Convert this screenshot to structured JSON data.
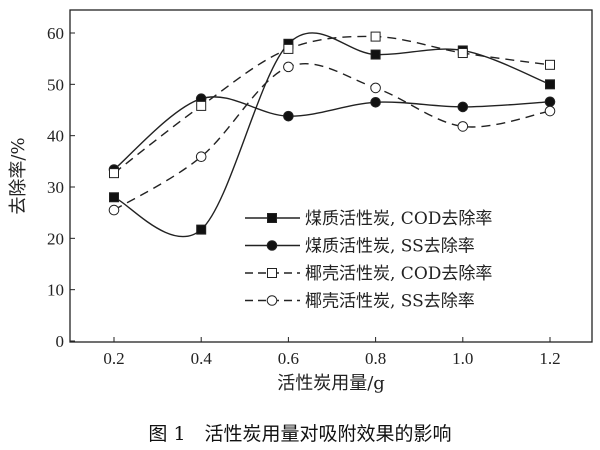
{
  "chart_data": {
    "type": "line",
    "title": "",
    "caption": "图 1　活性炭用量对吸附效果的影响",
    "xlabel": "活性炭用量/g",
    "ylabel": "去除率/%",
    "x": [
      0.2,
      0.4,
      0.6,
      0.8,
      1.0,
      1.2
    ],
    "x_tick_labels": [
      "0.2",
      "0.4",
      "0.6",
      "0.8",
      "1.0",
      "1.2"
    ],
    "y_ticks": [
      0,
      10,
      20,
      30,
      40,
      50,
      60
    ],
    "y_tick_labels": [
      "0",
      "10",
      "20",
      "30",
      "40",
      "50",
      "60"
    ],
    "xlim": [
      0.05,
      1.3
    ],
    "ylim": [
      0,
      63
    ],
    "grid": false,
    "legend_position": "lower-right",
    "series": [
      {
        "name": "煤质活性炭, COD去除率",
        "line": "solid",
        "marker": "filled-square",
        "values": [
          28.0,
          21.7,
          57.9,
          55.8,
          56.6,
          50.0
        ]
      },
      {
        "name": "煤质活性炭, SS去除率",
        "line": "solid",
        "marker": "filled-circle",
        "values": [
          33.4,
          47.2,
          43.8,
          46.5,
          45.6,
          46.6
        ]
      },
      {
        "name": "椰壳活性炭, COD去除率",
        "line": "dashed",
        "marker": "open-square",
        "values": [
          32.7,
          45.8,
          56.9,
          59.3,
          56.1,
          53.8
        ]
      },
      {
        "name": "椰壳活性炭, SS去除率",
        "line": "dashed",
        "marker": "open-circle",
        "values": [
          25.5,
          35.9,
          53.4,
          49.3,
          41.8,
          44.8
        ]
      }
    ]
  }
}
